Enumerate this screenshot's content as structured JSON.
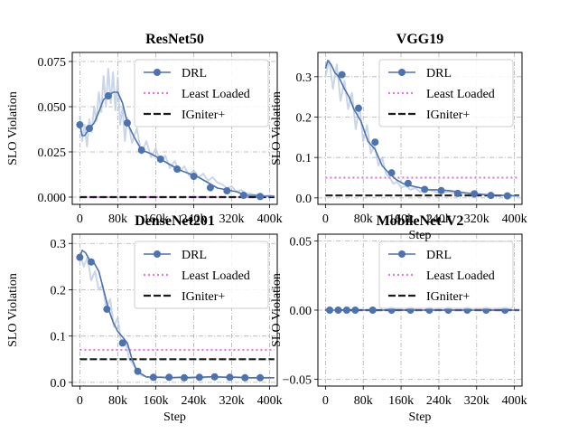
{
  "chart_data": [
    {
      "type": "line",
      "title": "ResNet50",
      "xlabel": "",
      "ylabel": "SLO Violation",
      "xlim": [
        -16000,
        416000
      ],
      "ylim": [
        -0.004,
        0.08
      ],
      "x_ticks": [
        0,
        80000,
        160000,
        240000,
        320000,
        400000
      ],
      "x_tick_labels": [
        "0",
        "80k",
        "160k",
        "240k",
        "320k",
        "400k"
      ],
      "y_ticks": [
        0.0,
        0.025,
        0.05,
        0.075
      ],
      "y_tick_labels": [
        "0.000",
        "0.025",
        "0.050",
        "0.075"
      ],
      "grid": true,
      "legend_position": "top-right",
      "series": [
        {
          "name": "DRL",
          "style": "line-with-markers",
          "color": "#4c72b0",
          "x": [
            0,
            5000,
            10000,
            15000,
            20000,
            30000,
            40000,
            50000,
            60000,
            70000,
            80000,
            90000,
            100000,
            115000,
            130000,
            150000,
            170000,
            190000,
            210000,
            230000,
            250000,
            270000,
            290000,
            310000,
            330000,
            350000,
            370000,
            390000,
            410000
          ],
          "y": [
            0.04,
            0.034,
            0.034,
            0.036,
            0.038,
            0.041,
            0.047,
            0.054,
            0.056,
            0.058,
            0.058,
            0.052,
            0.041,
            0.033,
            0.026,
            0.024,
            0.021,
            0.018,
            0.015,
            0.013,
            0.011,
            0.008,
            0.005,
            0.004,
            0.003,
            0.001,
            0.001,
            0.0005,
            0.0005
          ],
          "marker_x": [
            0,
            20000,
            60000,
            100000,
            130000,
            170000,
            205000,
            240000,
            275000,
            310000,
            345000,
            380000
          ],
          "marker_y": [
            0.04,
            0.038,
            0.056,
            0.041,
            0.026,
            0.021,
            0.0155,
            0.0115,
            0.0052,
            0.0035,
            0.001,
            0.0003
          ]
        },
        {
          "name": "Least Loaded",
          "style": "dotted",
          "color": "#e377e3",
          "x": [
            0,
            410000
          ],
          "y": [
            0.0,
            0.0
          ]
        },
        {
          "name": "IGniter+",
          "style": "dashed",
          "color": "#1a1a1a",
          "x": [
            0,
            410000
          ],
          "y": [
            0.0,
            0.0
          ]
        }
      ],
      "noise_band": {
        "color": "#b8c8e0",
        "x": [
          0,
          5000,
          10000,
          15000,
          20000,
          25000,
          30000,
          35000,
          40000,
          45000,
          50000,
          55000,
          60000,
          65000,
          70000,
          75000,
          80000,
          85000,
          90000,
          95000,
          100000,
          110000,
          120000,
          130000,
          140000,
          150000,
          160000,
          170000,
          180000,
          190000,
          200000,
          210000,
          220000,
          230000,
          240000,
          250000,
          260000,
          270000,
          280000,
          290000,
          300000,
          310000,
          320000,
          330000,
          340000,
          350000,
          360000,
          370000,
          380000,
          390000,
          400000,
          410000
        ],
        "y": [
          0.045,
          0.031,
          0.04,
          0.028,
          0.043,
          0.036,
          0.05,
          0.042,
          0.058,
          0.047,
          0.067,
          0.05,
          0.071,
          0.052,
          0.069,
          0.048,
          0.066,
          0.04,
          0.05,
          0.031,
          0.044,
          0.03,
          0.038,
          0.024,
          0.031,
          0.022,
          0.027,
          0.019,
          0.023,
          0.016,
          0.02,
          0.014,
          0.017,
          0.012,
          0.015,
          0.011,
          0.013,
          0.009,
          0.011,
          0.008,
          0.007,
          0.005,
          0.006,
          0.003,
          0.004,
          0.002,
          0.002,
          0.001,
          0.002,
          0.0005,
          0.001,
          0.0005
        ]
      }
    },
    {
      "type": "line",
      "title": "VGG19",
      "xlabel": "Step",
      "ylabel": "SLO Violation",
      "xlim": [
        -16000,
        416000
      ],
      "ylim": [
        -0.016,
        0.36
      ],
      "x_ticks": [
        0,
        80000,
        160000,
        240000,
        320000,
        400000
      ],
      "x_tick_labels": [
        "0",
        "80k",
        "160k",
        "240k",
        "320k",
        "400k"
      ],
      "y_ticks": [
        0.0,
        0.1,
        0.2,
        0.3
      ],
      "y_tick_labels": [
        "0.0",
        "0.1",
        "0.2",
        "0.3"
      ],
      "grid": true,
      "legend_position": "top-right",
      "series": [
        {
          "name": "DRL",
          "style": "line-with-markers",
          "color": "#4c72b0",
          "x": [
            0,
            5000,
            12000,
            20000,
            28000,
            40000,
            50000,
            60000,
            75000,
            90000,
            105000,
            120000,
            135000,
            150000,
            165000,
            180000,
            200000,
            220000,
            240000,
            260000,
            280000,
            300000,
            320000,
            340000,
            360000,
            380000,
            400000,
            410000
          ],
          "y": [
            0.32,
            0.34,
            0.33,
            0.31,
            0.3,
            0.27,
            0.25,
            0.22,
            0.19,
            0.14,
            0.12,
            0.08,
            0.06,
            0.045,
            0.035,
            0.03,
            0.025,
            0.02,
            0.02,
            0.018,
            0.015,
            0.012,
            0.01,
            0.008,
            0.007,
            0.006,
            0.005,
            0.005
          ],
          "marker_x": [
            35000,
            70000,
            105000,
            140000,
            175000,
            210000,
            245000,
            280000,
            315000,
            350000,
            385000
          ],
          "marker_y": [
            0.305,
            0.222,
            0.138,
            0.062,
            0.036,
            0.021,
            0.018,
            0.011,
            0.01,
            0.006,
            0.005
          ]
        },
        {
          "name": "Least Loaded",
          "style": "dotted",
          "color": "#e377e3",
          "x": [
            0,
            410000
          ],
          "y": [
            0.05,
            0.05
          ]
        },
        {
          "name": "IGniter+",
          "style": "dashed",
          "color": "#1a1a1a",
          "x": [
            0,
            410000
          ],
          "y": [
            0.006,
            0.006
          ]
        }
      ],
      "noise_band": {
        "color": "#b8c8e0",
        "x": [
          0,
          8000,
          16000,
          24000,
          32000,
          40000,
          48000,
          56000,
          64000,
          72000,
          80000,
          88000,
          96000,
          104000,
          112000,
          120000,
          128000,
          136000,
          144000,
          152000,
          160000,
          170000,
          180000,
          190000,
          200000,
          220000,
          240000,
          260000,
          280000,
          300000,
          320000,
          340000,
          360000,
          380000,
          400000
        ],
        "y": [
          0.3,
          0.34,
          0.27,
          0.33,
          0.24,
          0.29,
          0.22,
          0.26,
          0.17,
          0.23,
          0.14,
          0.18,
          0.11,
          0.13,
          0.08,
          0.1,
          0.06,
          0.05,
          0.035,
          0.04,
          0.025,
          0.03,
          0.02,
          0.025,
          0.015,
          0.02,
          0.012,
          0.015,
          0.01,
          0.011,
          0.008,
          0.008,
          0.006,
          0.006,
          0.005
        ]
      }
    },
    {
      "type": "line",
      "title": "DenseNet201",
      "xlabel": "Step",
      "ylabel": "SLO Violation",
      "xlim": [
        -16000,
        416000
      ],
      "ylim": [
        -0.008,
        0.32
      ],
      "x_ticks": [
        0,
        80000,
        160000,
        240000,
        320000,
        400000
      ],
      "x_tick_labels": [
        "0",
        "80k",
        "160k",
        "240k",
        "320k",
        "400k"
      ],
      "y_ticks": [
        0.0,
        0.1,
        0.2,
        0.3
      ],
      "y_tick_labels": [
        "0.0",
        "0.1",
        "0.2",
        "0.3"
      ],
      "grid": true,
      "legend_position": "top-right",
      "series": [
        {
          "name": "DRL",
          "style": "line-with-markers",
          "color": "#4c72b0",
          "x": [
            0,
            5000,
            12000,
            20000,
            30000,
            40000,
            50000,
            60000,
            70000,
            80000,
            90000,
            100000,
            110000,
            120000,
            130000,
            140000,
            155000,
            170000,
            190000,
            210000,
            230000,
            250000,
            270000,
            290000,
            310000,
            330000,
            350000,
            370000,
            390000,
            410000
          ],
          "y": [
            0.27,
            0.285,
            0.28,
            0.265,
            0.258,
            0.24,
            0.2,
            0.16,
            0.13,
            0.11,
            0.098,
            0.085,
            0.05,
            0.025,
            0.018,
            0.012,
            0.011,
            0.011,
            0.01,
            0.011,
            0.01,
            0.011,
            0.012,
            0.012,
            0.011,
            0.011,
            0.01,
            0.01,
            0.01,
            0.01
          ],
          "marker_x": [
            0,
            24000,
            57000,
            90000,
            122000,
            155000,
            188000,
            220000,
            252000,
            284000,
            316000,
            348000,
            380000
          ],
          "marker_y": [
            0.27,
            0.26,
            0.158,
            0.085,
            0.024,
            0.011,
            0.011,
            0.01,
            0.011,
            0.012,
            0.011,
            0.01,
            0.01
          ]
        },
        {
          "name": "Least Loaded",
          "style": "dotted",
          "color": "#e377e3",
          "x": [
            0,
            410000
          ],
          "y": [
            0.07,
            0.07
          ]
        },
        {
          "name": "IGniter+",
          "style": "dashed",
          "color": "#1a1a1a",
          "x": [
            0,
            410000
          ],
          "y": [
            0.05,
            0.05
          ]
        }
      ],
      "noise_band": {
        "color": "#b8c8e0",
        "x": [
          0,
          8000,
          16000,
          24000,
          32000,
          40000,
          48000,
          56000,
          64000,
          72000,
          80000,
          88000,
          96000,
          104000,
          112000,
          120000,
          130000,
          140000,
          150000,
          165000,
          180000,
          200000,
          220000,
          240000,
          260000,
          280000,
          300000,
          320000,
          340000,
          360000,
          380000,
          400000
        ],
        "y": [
          0.28,
          0.25,
          0.27,
          0.22,
          0.24,
          0.2,
          0.21,
          0.16,
          0.18,
          0.12,
          0.14,
          0.08,
          0.09,
          0.05,
          0.04,
          0.025,
          0.015,
          0.012,
          0.01,
          0.012,
          0.011,
          0.01,
          0.011,
          0.012,
          0.01,
          0.012,
          0.011,
          0.012,
          0.011,
          0.01,
          0.01,
          0.01
        ]
      }
    },
    {
      "type": "line",
      "title": "MobileNet-V2",
      "xlabel": "Step",
      "ylabel": "SLO Violation",
      "xlim": [
        -16000,
        416000
      ],
      "ylim": [
        -0.055,
        0.055
      ],
      "x_ticks": [
        0,
        80000,
        160000,
        240000,
        320000,
        400000
      ],
      "x_tick_labels": [
        "0",
        "80k",
        "160k",
        "240k",
        "320k",
        "400k"
      ],
      "y_ticks": [
        -0.05,
        0.0,
        0.05
      ],
      "y_tick_labels": [
        "−0.05",
        "0.00",
        "0.05"
      ],
      "grid": true,
      "legend_position": "top-right",
      "series": [
        {
          "name": "DRL",
          "style": "line-with-markers",
          "color": "#4c72b0",
          "x": [
            0,
            410000
          ],
          "y": [
            0.0,
            0.0
          ],
          "marker_x": [
            9000,
            27000,
            45000,
            63000,
            100000,
            140000,
            180000,
            220000,
            260000,
            300000,
            340000,
            380000
          ],
          "marker_y": [
            0,
            0,
            0,
            0,
            0,
            0,
            0,
            0,
            0,
            0,
            0,
            0
          ]
        },
        {
          "name": "Least Loaded",
          "style": "dotted",
          "color": "#e377e3",
          "x": [
            0,
            410000
          ],
          "y": [
            0.0,
            0.0
          ]
        },
        {
          "name": "IGniter+",
          "style": "dashed",
          "color": "#1a1a1a",
          "x": [
            0,
            410000
          ],
          "y": [
            0.0,
            0.0
          ]
        }
      ]
    }
  ]
}
